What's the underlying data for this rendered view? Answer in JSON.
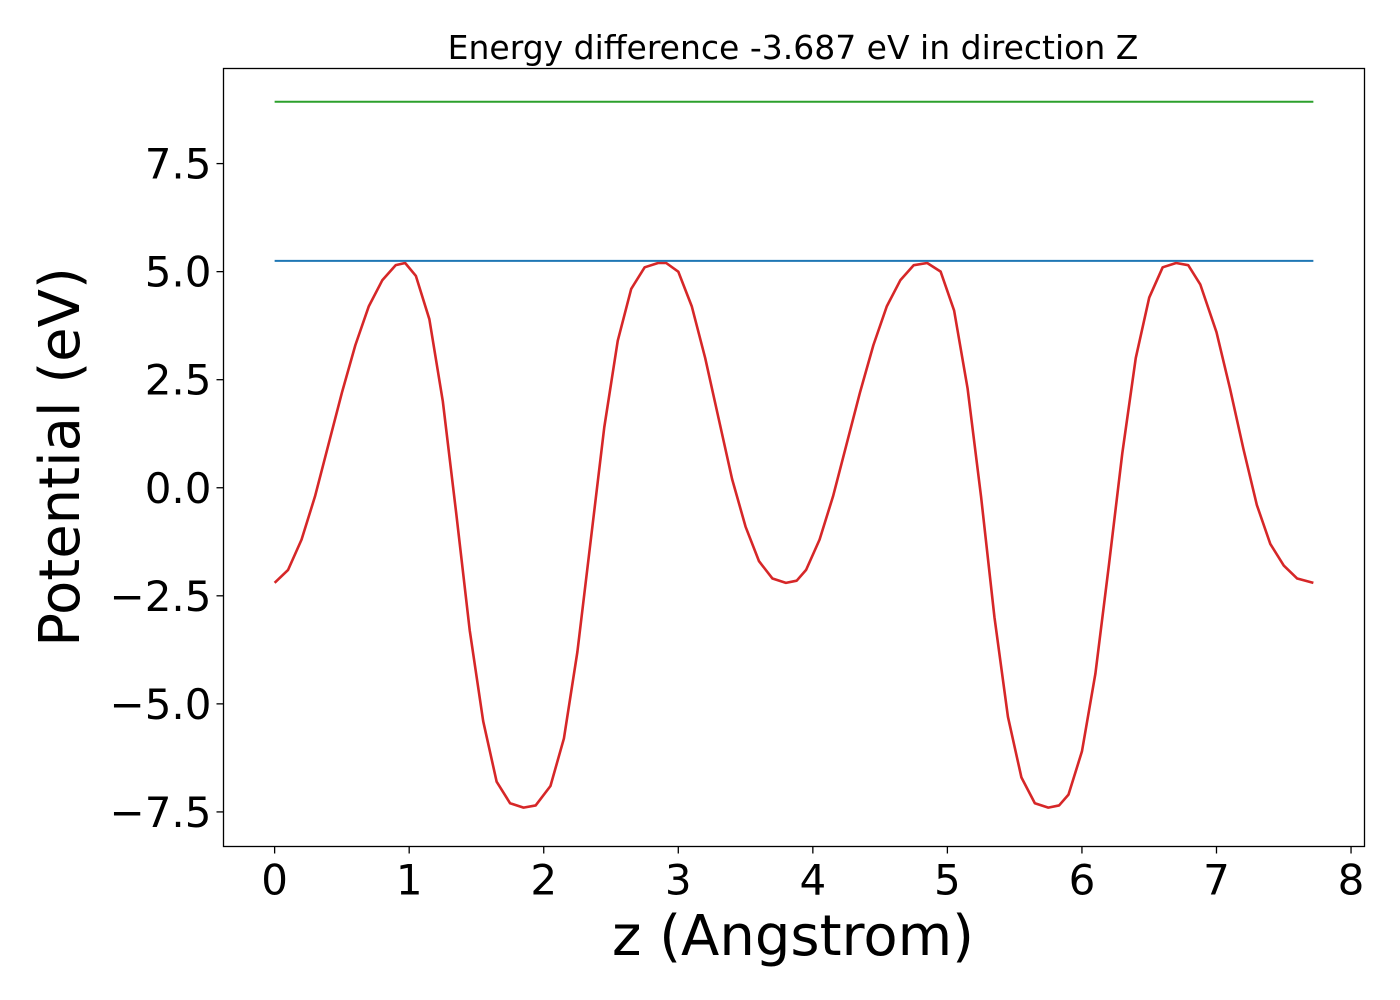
{
  "chart_data": {
    "type": "line",
    "title": "Energy difference -3.687 eV in direction Z",
    "xlabel": "z (Angstrom)",
    "ylabel": "Potential (eV)",
    "xlim": [
      -0.38,
      8.1
    ],
    "ylim": [
      -8.3,
      9.7
    ],
    "x_ticks": [
      0,
      1,
      2,
      3,
      4,
      5,
      6,
      7,
      8
    ],
    "x_tick_labels": [
      "0",
      "1",
      "2",
      "3",
      "4",
      "5",
      "6",
      "7",
      "8"
    ],
    "y_ticks": [
      -7.5,
      -5.0,
      -2.5,
      0.0,
      2.5,
      5.0,
      7.5
    ],
    "y_tick_labels": [
      "−7.5",
      "−5.0",
      "−2.5",
      "0.0",
      "2.5",
      "5.0",
      "7.5"
    ],
    "grid": false,
    "legend": "none",
    "series": [
      {
        "color": "#d62728",
        "x": [
          0.0,
          0.1,
          0.2,
          0.3,
          0.4,
          0.5,
          0.6,
          0.7,
          0.8,
          0.9,
          0.97,
          1.05,
          1.15,
          1.25,
          1.35,
          1.45,
          1.55,
          1.65,
          1.75,
          1.85,
          1.94,
          2.05,
          2.15,
          2.25,
          2.35,
          2.45,
          2.55,
          2.65,
          2.75,
          2.85,
          2.91,
          3.0,
          3.1,
          3.2,
          3.3,
          3.4,
          3.5,
          3.6,
          3.7,
          3.8,
          3.88,
          3.95,
          4.05,
          4.15,
          4.25,
          4.35,
          4.45,
          4.55,
          4.65,
          4.75,
          4.85,
          4.95,
          5.05,
          5.15,
          5.25,
          5.35,
          5.45,
          5.55,
          5.65,
          5.75,
          5.83,
          5.9,
          6.0,
          6.1,
          6.2,
          6.3,
          6.4,
          6.5,
          6.6,
          6.7,
          6.79,
          6.88,
          7.0,
          7.1,
          7.2,
          7.3,
          7.4,
          7.5,
          7.6,
          7.72
        ],
        "y": [
          -2.2,
          -1.9,
          -1.2,
          -0.2,
          1.0,
          2.2,
          3.3,
          4.2,
          4.8,
          5.15,
          5.2,
          4.9,
          3.9,
          2.0,
          -0.6,
          -3.3,
          -5.4,
          -6.8,
          -7.3,
          -7.4,
          -7.35,
          -6.9,
          -5.8,
          -3.8,
          -1.2,
          1.4,
          3.4,
          4.6,
          5.1,
          5.2,
          5.2,
          5.0,
          4.2,
          3.0,
          1.6,
          0.2,
          -0.9,
          -1.7,
          -2.1,
          -2.2,
          -2.15,
          -1.9,
          -1.2,
          -0.2,
          1.0,
          2.2,
          3.3,
          4.2,
          4.8,
          5.15,
          5.2,
          5.0,
          4.1,
          2.3,
          -0.2,
          -3.0,
          -5.3,
          -6.7,
          -7.3,
          -7.4,
          -7.35,
          -7.1,
          -6.1,
          -4.3,
          -1.8,
          0.8,
          3.0,
          4.4,
          5.1,
          5.2,
          5.15,
          4.7,
          3.6,
          2.3,
          0.9,
          -0.4,
          -1.3,
          -1.8,
          -2.1,
          -2.2
        ]
      },
      {
        "color": "#1f77b4",
        "x": [
          0.0,
          7.72
        ],
        "y": [
          5.25,
          5.25
        ]
      },
      {
        "color": "#2ca02c",
        "x": [
          0.0,
          7.72
        ],
        "y": [
          8.93,
          8.93
        ]
      }
    ]
  }
}
